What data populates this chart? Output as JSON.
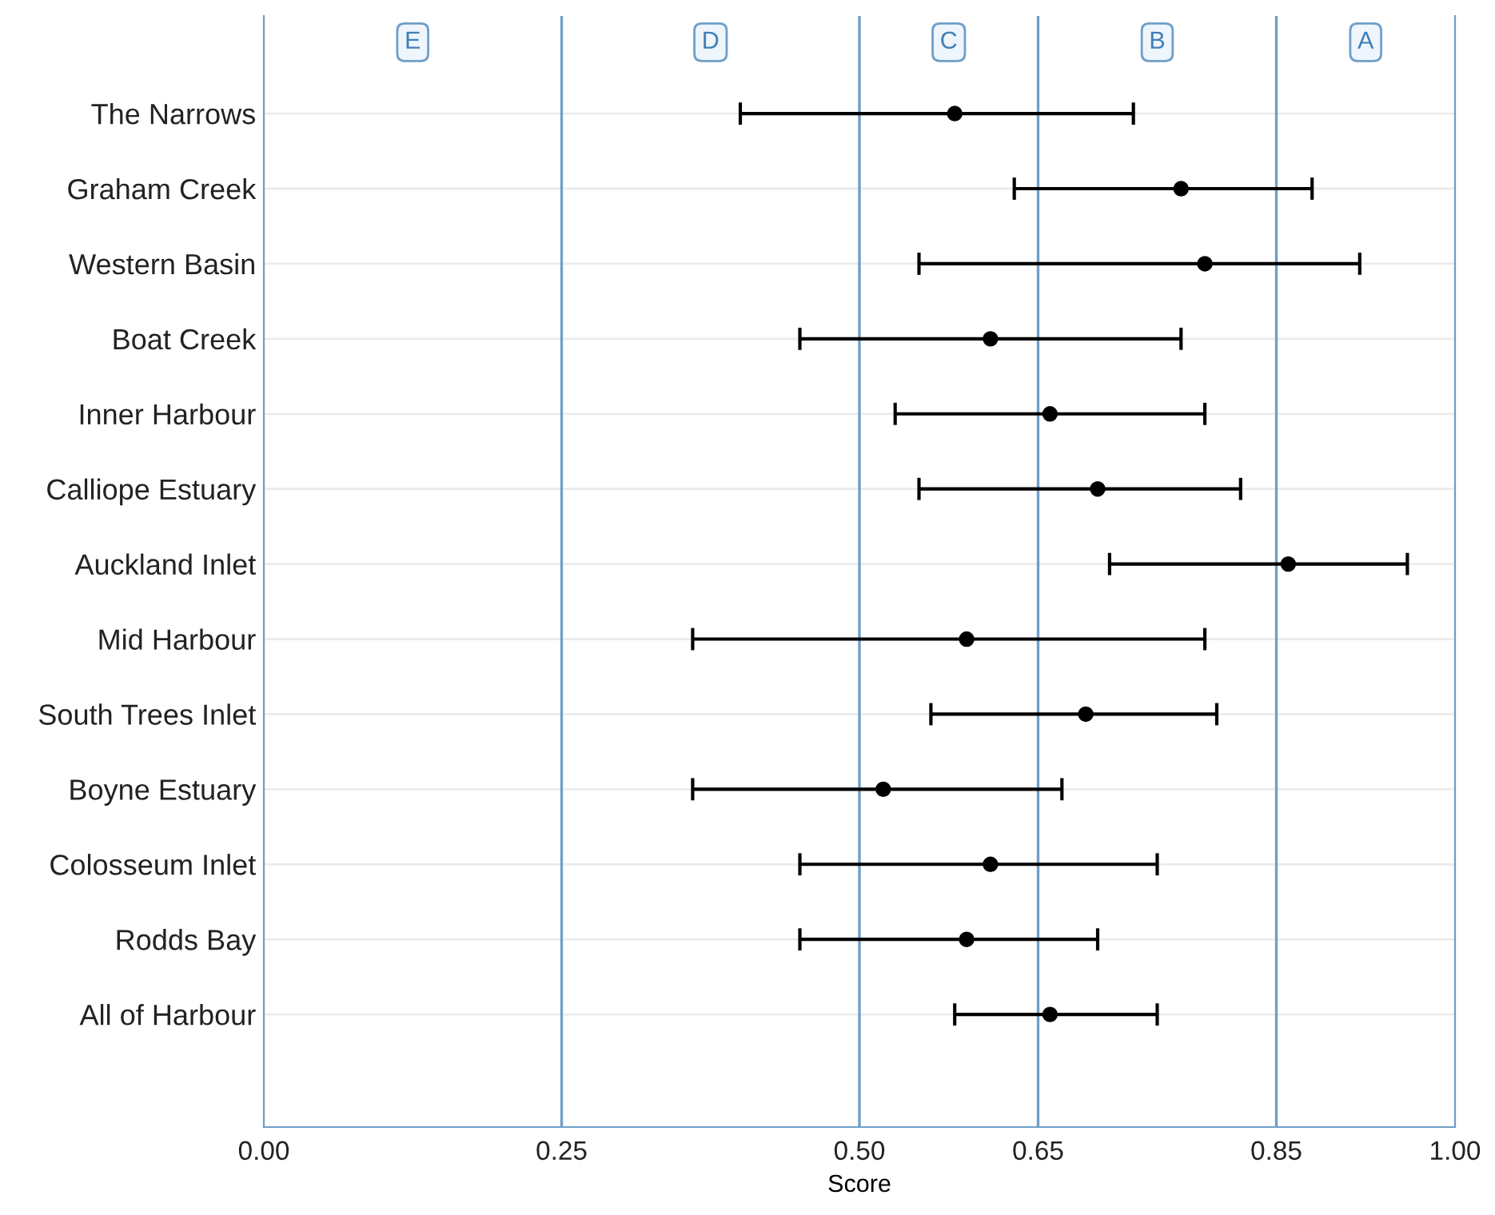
{
  "chart_data": {
    "type": "scatter",
    "xlabel": "Score",
    "categories": [
      "The Narrows",
      "Graham Creek",
      "Western Basin",
      "Boat Creek",
      "Inner Harbour",
      "Calliope Estuary",
      "Auckland Inlet",
      "Mid Harbour",
      "South Trees Inlet",
      "Boyne Estuary",
      "Colosseum Inlet",
      "Rodds Bay",
      "All of Harbour"
    ],
    "orientation": "horizontal",
    "series": [
      {
        "color": "#000000",
        "values": [
          0.58,
          0.77,
          0.79,
          0.61,
          0.66,
          0.7,
          0.86,
          0.59,
          0.69,
          0.52,
          0.61,
          0.59,
          0.66
        ],
        "errors": [
          [
            0.4,
            0.73
          ],
          [
            0.63,
            0.88
          ],
          [
            0.55,
            0.92
          ],
          [
            0.45,
            0.77
          ],
          [
            0.53,
            0.79
          ],
          [
            0.55,
            0.82
          ],
          [
            0.71,
            0.96
          ],
          [
            0.36,
            0.79
          ],
          [
            0.56,
            0.8
          ],
          [
            0.36,
            0.67
          ],
          [
            0.45,
            0.75
          ],
          [
            0.45,
            0.7
          ],
          [
            0.58,
            0.75
          ]
        ]
      }
    ],
    "xlim": [
      0,
      1
    ],
    "xticks": [
      {
        "value": 0,
        "label": "0.00"
      },
      0.25,
      {
        "value": 0.5,
        "label": "0.50"
      },
      0.65,
      0.85,
      {
        "value": 1,
        "label": "1.00"
      }
    ],
    "ref_lines": [
      {
        "axis": "x",
        "value": 0.25,
        "color": "#6f9fc8"
      },
      {
        "axis": "x",
        "value": 0.5,
        "color": "#6f9fc8"
      },
      {
        "axis": "x",
        "value": 0.65,
        "color": "#6f9fc8"
      },
      {
        "axis": "x",
        "value": 0.85,
        "color": "#6f9fc8"
      }
    ],
    "bands": [
      {
        "axis": "x",
        "from": 0,
        "to": 0.25,
        "label": "E",
        "color": "#ffffff"
      },
      {
        "axis": "x",
        "from": 0.25,
        "to": 0.5,
        "label": "D",
        "color": "#ffffff"
      },
      {
        "axis": "x",
        "from": 0.5,
        "to": 0.65,
        "label": "C",
        "color": "#ffffff"
      },
      {
        "axis": "x",
        "from": 0.65,
        "to": 0.85,
        "label": "B",
        "color": "#ffffff"
      },
      {
        "axis": "x",
        "from": 0.85,
        "to": 1,
        "label": "A",
        "color": "#ffffff"
      }
    ],
    "grid": true,
    "marker": "circle",
    "legend": false
  }
}
